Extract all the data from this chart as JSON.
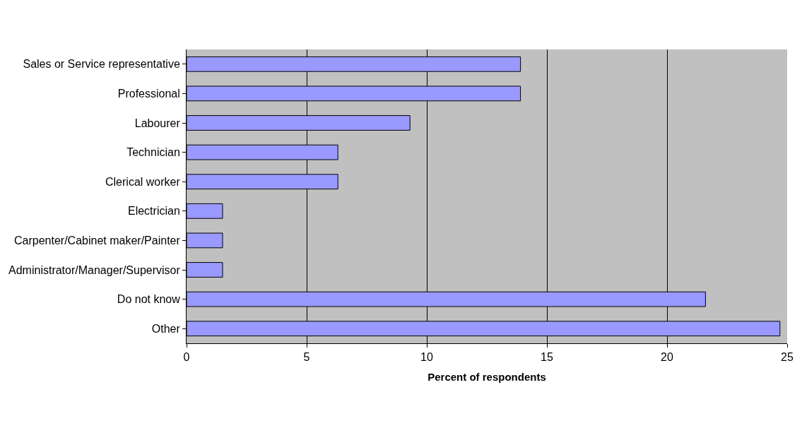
{
  "chart_data": {
    "type": "bar",
    "orientation": "horizontal",
    "xlabel": "Percent of respondents",
    "categories": [
      "Sales or Service representative",
      "Professional",
      "Labourer",
      "Technician",
      "Clerical worker",
      "Electrician",
      "Carpenter/Cabinet maker/Painter",
      "Administrator/Manager/Supervisor",
      "Do not know",
      "Other"
    ],
    "values": [
      13.9,
      13.9,
      9.3,
      6.3,
      6.3,
      1.5,
      1.5,
      1.5,
      21.6,
      24.7
    ],
    "color": "#9999ff",
    "xlim": [
      0,
      25
    ],
    "xticks": [
      0,
      5,
      10,
      15,
      20,
      25
    ],
    "grid": "x",
    "legend": false
  }
}
